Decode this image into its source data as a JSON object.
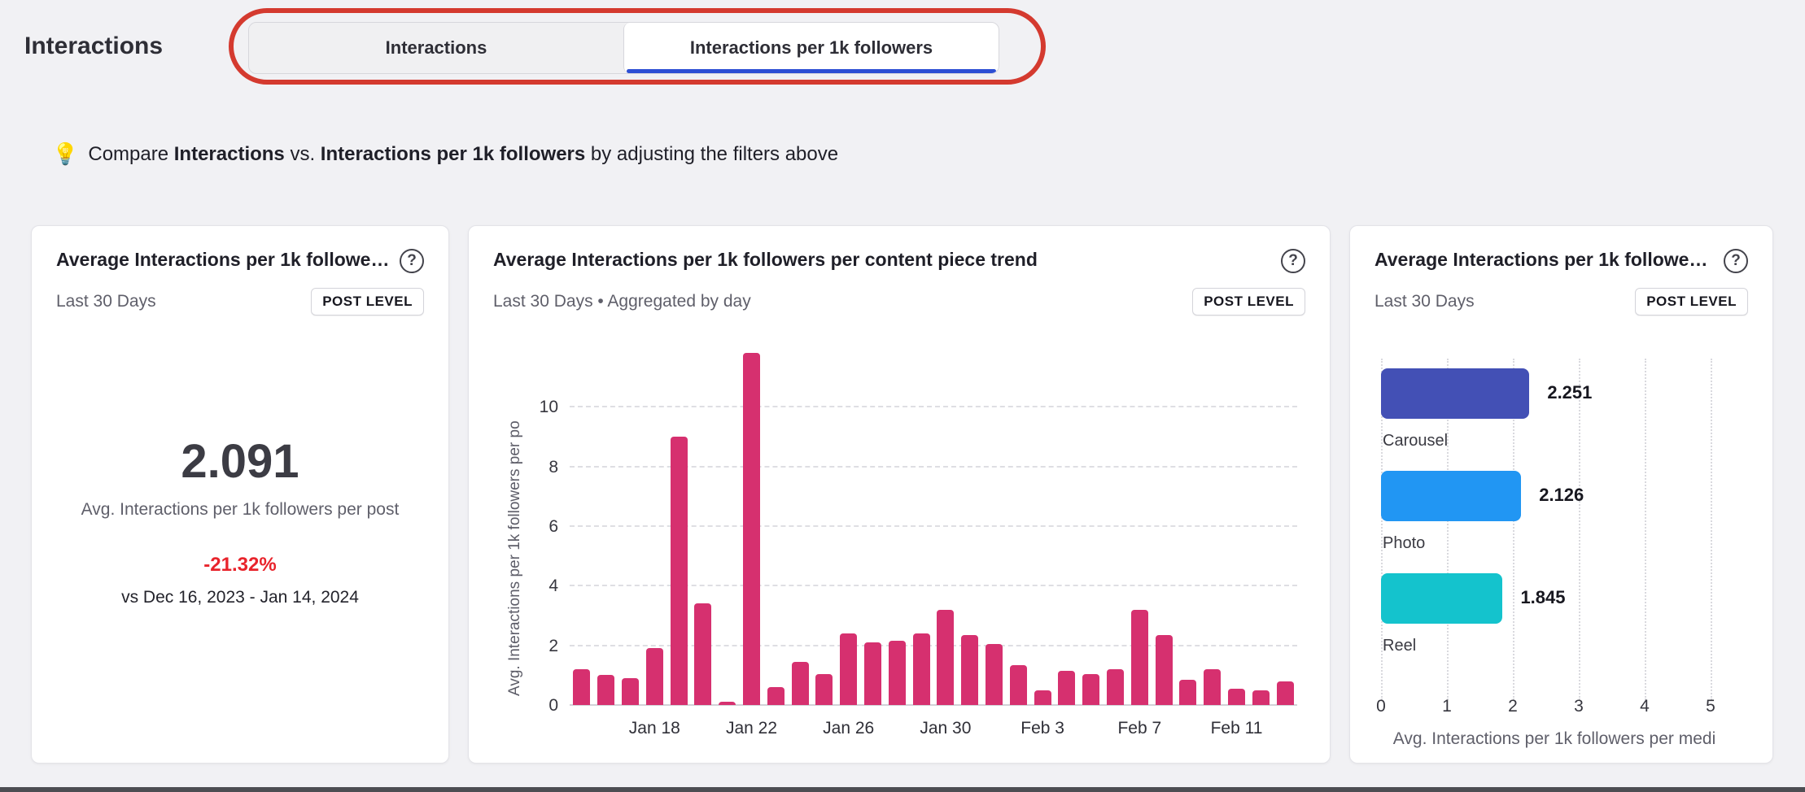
{
  "colors": {
    "accent-blue": "#2d4fd4",
    "annotation-red": "#d43a2f",
    "trend-pink": "#d6306f",
    "negative-red": "#e8232b"
  },
  "page": {
    "title": "Interactions",
    "tabs": [
      {
        "label": "Interactions",
        "active": false
      },
      {
        "label": "Interactions per 1k followers",
        "active": true
      }
    ],
    "tip": {
      "emoji": "💡",
      "prefix": "Compare ",
      "bold1": "Interactions",
      "middle": " vs. ",
      "bold2": "Interactions per 1k followers",
      "suffix": " by adjusting the filters above"
    }
  },
  "cards": {
    "summary": {
      "title": "Average Interactions per 1k followe…",
      "period": "Last 30 Days",
      "badge": "POST LEVEL",
      "value": "2.091",
      "value_label": "Avg. Interactions per 1k followers per post",
      "change": "-21.32%",
      "comparison": "vs Dec 16, 2023 - Jan 14, 2024"
    },
    "trend": {
      "title": "Average Interactions per 1k followers per content piece trend",
      "period": "Last 30 Days • Aggregated by day",
      "badge": "POST LEVEL"
    },
    "media": {
      "title": "Average Interactions per 1k followe…",
      "period": "Last 30 Days",
      "badge": "POST LEVEL"
    }
  },
  "chart_data": [
    {
      "type": "bar",
      "title": "Average Interactions per 1k followers per content piece trend",
      "ylabel": "Avg. Interactions per 1k followers per po",
      "bar_color": "#d6306f",
      "ylim": [
        0,
        12
      ],
      "yticks": [
        0,
        2,
        4,
        6,
        8,
        10
      ],
      "x": [
        "Jan 15",
        "Jan 16",
        "Jan 17",
        "Jan 18",
        "Jan 19",
        "Jan 20",
        "Jan 21",
        "Jan 22",
        "Jan 23",
        "Jan 24",
        "Jan 25",
        "Jan 26",
        "Jan 27",
        "Jan 28",
        "Jan 29",
        "Jan 30",
        "Jan 31",
        "Feb 1",
        "Feb 2",
        "Feb 3",
        "Feb 4",
        "Feb 5",
        "Feb 6",
        "Feb 7",
        "Feb 8",
        "Feb 9",
        "Feb 10",
        "Feb 11",
        "Feb 12",
        "Feb 13"
      ],
      "values": [
        1.2,
        1.0,
        0.9,
        1.9,
        9.0,
        3.4,
        0.1,
        11.8,
        0.6,
        1.45,
        1.05,
        2.4,
        2.1,
        2.15,
        2.4,
        3.2,
        2.35,
        2.05,
        1.35,
        0.5,
        1.15,
        1.05,
        1.2,
        3.2,
        2.35,
        0.85,
        1.2,
        0.55,
        0.5,
        0.8
      ],
      "xtick_labels": [
        "Jan 18",
        "Jan 22",
        "Jan 26",
        "Jan 30",
        "Feb 3",
        "Feb 7",
        "Feb 11"
      ],
      "xtick_indices": [
        3,
        7,
        11,
        15,
        19,
        23,
        27
      ],
      "grid": "dashed-horizontal",
      "legend": "none"
    },
    {
      "type": "bar",
      "orientation": "horizontal",
      "categories": [
        "Carousel",
        "Photo",
        "Reel"
      ],
      "values": [
        2.251,
        2.126,
        1.845
      ],
      "value_labels": [
        "2.251",
        "2.126",
        "1.845"
      ],
      "colors": [
        "#4350b5",
        "#2196f3",
        "#14c3cd"
      ],
      "xlabel": "Avg. Interactions per 1k followers per medi",
      "xlim": [
        0,
        5
      ],
      "xticks": [
        0,
        1,
        2,
        3,
        4,
        5
      ],
      "grid": "dotted-vertical",
      "legend": "none"
    }
  ]
}
